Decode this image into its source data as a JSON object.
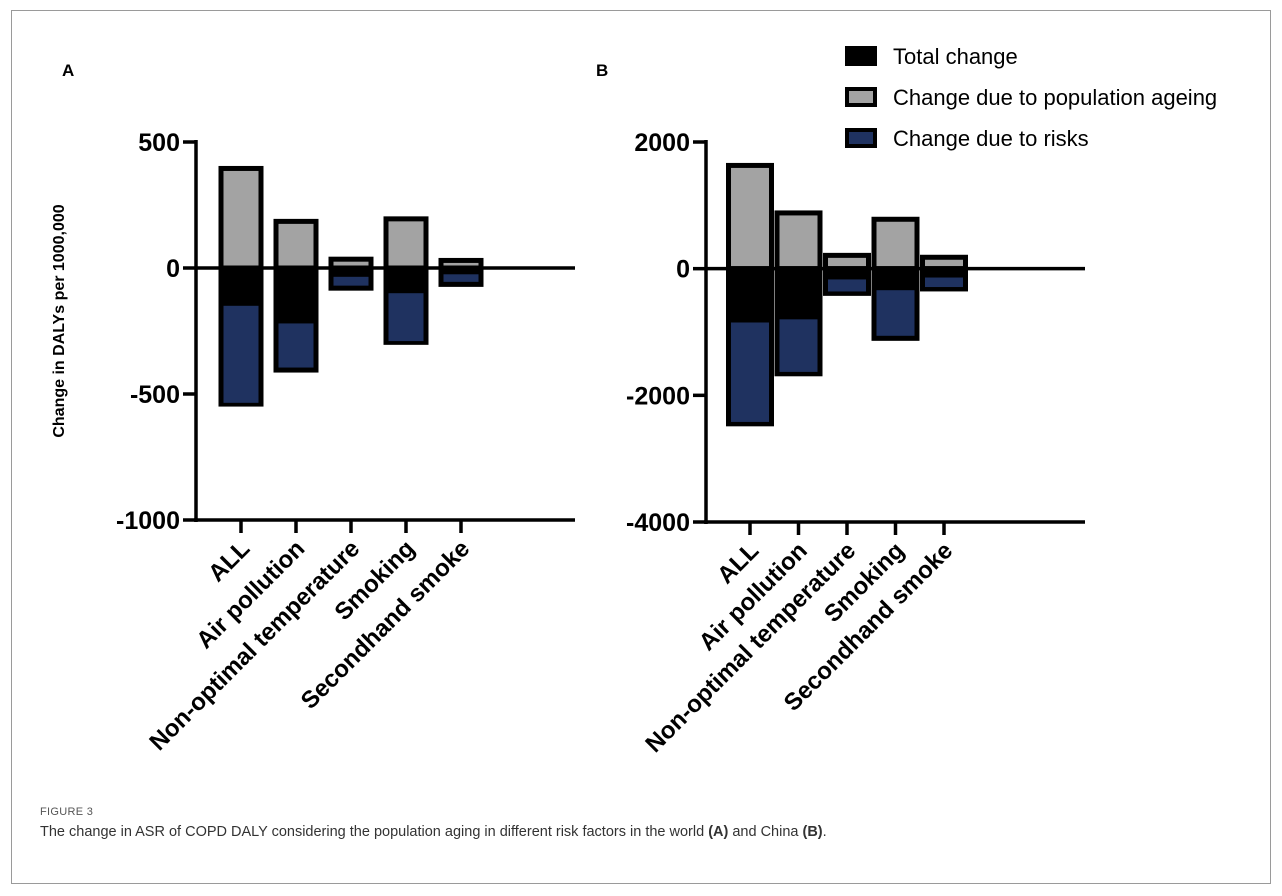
{
  "figure": {
    "label": "FIGURE 3",
    "caption_before_a": "The change in ASR of COPD DALY considering the population aging in different risk factors in the world ",
    "caption_a": "(A)",
    "caption_between": " and China ",
    "caption_b": "(B)",
    "caption_after": "."
  },
  "legend": {
    "entries": [
      {
        "label": "Total change",
        "color": "#000000"
      },
      {
        "label": "Change due to population ageing",
        "color": "#a3a3a3"
      },
      {
        "label": "Change due to risks",
        "color": "#1f3260"
      }
    ]
  },
  "chart_data": [
    {
      "panel": "A",
      "type": "bar",
      "ylabel": "Change in DALYs per 1000,000",
      "ylim": [
        -1000,
        500
      ],
      "yticks": [
        500,
        0,
        -500,
        -1000
      ],
      "yticklabels": [
        "500",
        "0",
        "-500",
        "-1000"
      ],
      "categories": [
        "ALL",
        "Air pollution",
        "Non-optimal temperature",
        "Smoking",
        "Secondhand smoke"
      ],
      "series": [
        {
          "name": "Total change",
          "values": [
            -540,
            -405,
            -80,
            -295,
            -65
          ]
        },
        {
          "name": "Change due to population ageing",
          "values": [
            395,
            185,
            35,
            195,
            30
          ]
        },
        {
          "name": "Change due to risks",
          "values": [
            -535,
            -395,
            -70,
            -290,
            -55
          ]
        }
      ],
      "risk_segment_top": [
        -150,
        -220,
        -35,
        -100,
        -25
      ]
    },
    {
      "panel": "B",
      "type": "bar",
      "ylabel": "",
      "ylim": [
        -4000,
        2000
      ],
      "yticks": [
        2000,
        0,
        -2000,
        -4000
      ],
      "yticklabels": [
        "2000",
        "0",
        "-2000",
        "-4000"
      ],
      "categories": [
        "ALL",
        "Air pollution",
        "Non-optimal temperature",
        "Smoking",
        "Secondhand smoke"
      ],
      "series": [
        {
          "name": "Total change",
          "values": [
            -2450,
            -1660,
            -390,
            -1100,
            -320
          ]
        },
        {
          "name": "Change due to population ageing",
          "values": [
            1630,
            880,
            210,
            780,
            180
          ]
        },
        {
          "name": "Change due to risks",
          "values": [
            -2420,
            -1630,
            -360,
            -1060,
            -290
          ]
        }
      ],
      "risk_segment_top": [
        -850,
        -800,
        -170,
        -340,
        -140
      ]
    }
  ]
}
